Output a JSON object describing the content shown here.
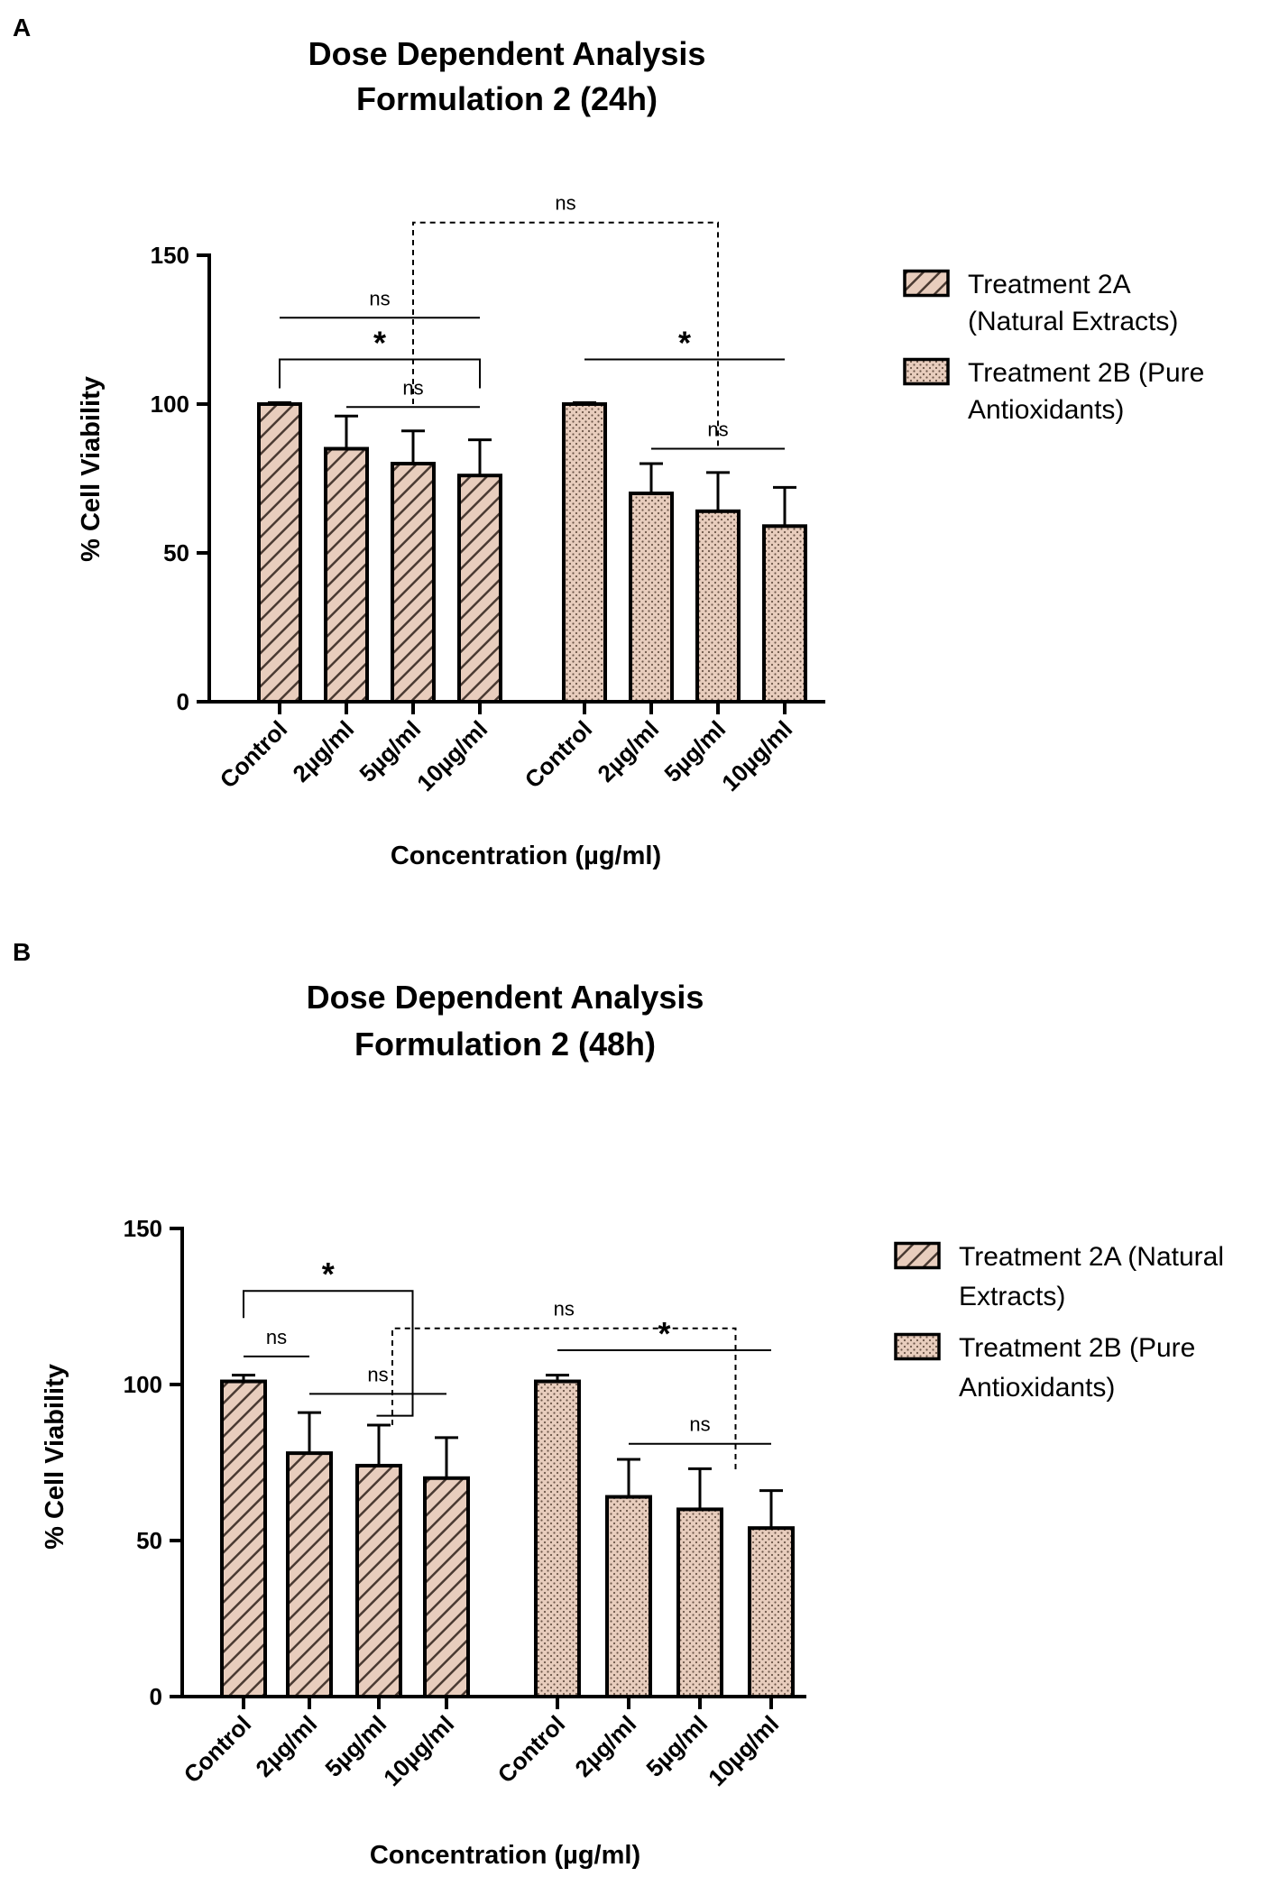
{
  "colors": {
    "bar_fill": "#e8cdbd",
    "stroke": "#000000",
    "pattern_line": "#4a3a32",
    "dot": "#6b5548"
  },
  "chart_data": [
    {
      "type": "bar",
      "panel": "A",
      "title_line1": "Dose Dependent  Analysis",
      "title_line2": "Formulation 2 (24h)",
      "xlabel": "Concentration (µg/ml)",
      "ylabel": "% Cell Viability",
      "ylim": [
        0,
        150
      ],
      "yticks": [
        "0",
        "50",
        "100",
        "150"
      ],
      "ytick_values": [
        0,
        50,
        100,
        150
      ],
      "categories": [
        "Control",
        "2µg/ml",
        "5µg/ml",
        "10µg/ml"
      ],
      "series": [
        {
          "name": "Treatment 2A (Natural Extracts)",
          "pattern": "hatch",
          "values": [
            100,
            85,
            80,
            76
          ],
          "errors": [
            0.5,
            11,
            11,
            12
          ]
        },
        {
          "name": "Treatment 2B (Pure Antioxidants)",
          "pattern": "dots",
          "values": [
            100,
            70,
            64,
            59
          ],
          "errors": [
            0.5,
            10,
            13,
            13
          ]
        }
      ],
      "legend": [
        {
          "line1": "Treatment 2A",
          "line2": "(Natural Extracts)",
          "pattern": "hatch"
        },
        {
          "line1": "Treatment 2B (Pure",
          "line2": "Antioxidants)",
          "pattern": "dots"
        }
      ],
      "annotations": [
        {
          "type": "line",
          "from_bar": 0,
          "to_bar": 3,
          "y": 129,
          "label": "ns"
        },
        {
          "type": "bracket",
          "from_bar": 0,
          "to_bar": 3,
          "y": 115,
          "label": "*"
        },
        {
          "type": "line",
          "from_bar": 1,
          "to_bar": 3,
          "y": 99,
          "label": "ns"
        },
        {
          "type": "line",
          "from_bar": 4,
          "to_bar": 7,
          "y": 115,
          "label": "*"
        },
        {
          "type": "line",
          "from_bar": 5,
          "to_bar": 7,
          "y": 85,
          "label": "ns"
        },
        {
          "type": "dashed-bracket",
          "from_bar": 2,
          "to_bar": 6,
          "y": 161,
          "drop_to": [
            100,
            85
          ],
          "label": "ns"
        }
      ]
    },
    {
      "type": "bar",
      "panel": "B",
      "title_line1": "Dose Dependent  Analysis",
      "title_line2": "Formulation 2 (48h)",
      "xlabel": "Concentration (µg/ml)",
      "ylabel": "% Cell Viability",
      "ylim": [
        0,
        150
      ],
      "yticks": [
        "0",
        "50",
        "100",
        "150"
      ],
      "ytick_values": [
        0,
        50,
        100,
        150
      ],
      "categories": [
        "Control",
        "2µg/ml",
        "5µg/ml",
        "10µg/ml"
      ],
      "series": [
        {
          "name": "Treatment 2A (Natural Extracts)",
          "pattern": "hatch",
          "values": [
            101,
            78,
            74,
            70
          ],
          "errors": [
            2,
            13,
            13,
            13
          ]
        },
        {
          "name": "Treatment 2B (Pure Antioxidants)",
          "pattern": "dots",
          "values": [
            101,
            64,
            60,
            54
          ],
          "errors": [
            2,
            12,
            13,
            12
          ]
        }
      ],
      "legend": [
        {
          "line1": "Treatment 2A (Natural",
          "line2": "Extracts)",
          "pattern": "hatch"
        },
        {
          "line1": "Treatment 2B (Pure",
          "line2": "Antioxidants)",
          "pattern": "dots"
        }
      ],
      "annotations": [
        {
          "type": "bracket-open",
          "from_bar": 0,
          "to_bar": 2.5,
          "y": 130,
          "drop_to": 90,
          "label": "*"
        },
        {
          "type": "line",
          "from_bar": 0,
          "to_bar": 1,
          "y": 109,
          "label": "ns"
        },
        {
          "type": "line",
          "from_bar": 1,
          "to_bar": 3,
          "y": 97,
          "label": "ns"
        },
        {
          "type": "dashed-bracket",
          "from_bar": 2.2,
          "to_bar": 6.5,
          "y": 118,
          "drop_to": [
            87,
            72
          ],
          "label": "ns"
        },
        {
          "type": "line",
          "from_bar": 4,
          "to_bar": 7,
          "y": 111,
          "label": "*"
        },
        {
          "type": "line",
          "from_bar": 5,
          "to_bar": 7,
          "y": 81,
          "label": "ns"
        }
      ]
    }
  ]
}
